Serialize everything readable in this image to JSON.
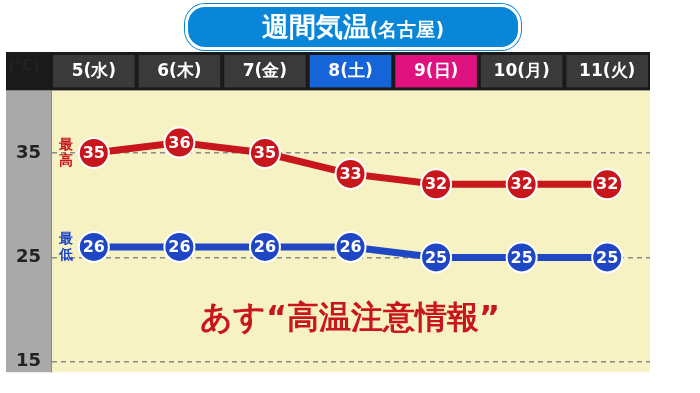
{
  "chart_data": {
    "type": "line",
    "title": "週間気温",
    "subtitle": "(名古屋)",
    "y_label": "(℃)",
    "annotation": "あす“高温注意情報”",
    "categories": [
      "5(水)",
      "6(木)",
      "7(金)",
      "8(土)",
      "9(日)",
      "10(月)",
      "11(火)"
    ],
    "series": [
      {
        "name": "最高",
        "color": "#c8161d",
        "marker": "circle",
        "values": [
          35,
          36,
          35,
          33,
          32,
          32,
          32
        ]
      },
      {
        "name": "最低",
        "color": "#1f47c4",
        "marker": "circle",
        "values": [
          26,
          26,
          26,
          26,
          25,
          25,
          25
        ]
      }
    ],
    "ylim": [
      14,
      41
    ],
    "yticks": [
      15,
      25,
      35
    ],
    "grid": true,
    "data_labels": true
  }
}
